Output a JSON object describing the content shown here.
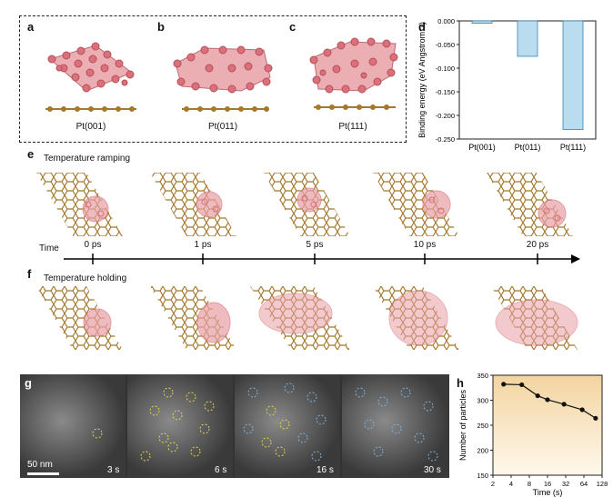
{
  "panels": {
    "a": {
      "letter": "a",
      "label": "Pt(001)"
    },
    "b": {
      "letter": "b",
      "label": "Pt(011)"
    },
    "c": {
      "letter": "c",
      "label": "Pt(111)"
    },
    "d": {
      "letter": "d"
    },
    "e": {
      "letter": "e",
      "title": "Temperature ramping"
    },
    "f": {
      "letter": "f",
      "title": "Temperature holding"
    },
    "g": {
      "letter": "g",
      "scale_bar": "50 nm",
      "frames": [
        "3 s",
        "6 s",
        "16 s",
        "30 s"
      ]
    },
    "h": {
      "letter": "h"
    }
  },
  "timeline": {
    "label": "Time",
    "ticks": [
      "0 ps",
      "1 ps",
      "5 ps",
      "10 ps",
      "20 ps"
    ]
  },
  "colors": {
    "pt": "#d9707a",
    "graphene": "#a5782e",
    "bar_fill": "#6ab0d6",
    "plot_bg": "#f6dcae"
  },
  "chart_data": [
    {
      "type": "bar",
      "categories": [
        "Pt(001)",
        "Pt(011)",
        "Pt(111)"
      ],
      "values": [
        -0.005,
        -0.075,
        -0.23
      ],
      "title": "",
      "xlabel": "",
      "ylabel": "Binding energy (eV Angstrom⁻²)",
      "ylim": [
        -0.25,
        0.0
      ],
      "yticks": [
        0.0,
        -0.05,
        -0.1,
        -0.15,
        -0.2,
        -0.25
      ],
      "ytick_labels": [
        "0.000",
        "-0.050",
        "-0.100",
        "-0.150",
        "-0.200",
        "-0.250"
      ]
    },
    {
      "type": "line",
      "x": [
        3,
        6,
        11,
        16,
        30,
        60,
        100
      ],
      "values": [
        332,
        331,
        309,
        301,
        292,
        281,
        264
      ],
      "title": "",
      "xlabel": "Time (s)",
      "ylabel": "Number of particles",
      "xscale": "log2",
      "xlim": [
        2,
        128
      ],
      "ylim": [
        150,
        350
      ],
      "xticks": [
        2,
        4,
        8,
        16,
        32,
        64,
        128
      ],
      "xtick_labels": [
        "2",
        "4",
        "8",
        "16",
        "32",
        "64",
        "128"
      ],
      "yticks": [
        150,
        200,
        250,
        300,
        350
      ],
      "ytick_labels": [
        "150",
        "200",
        "250",
        "300",
        "350"
      ]
    }
  ]
}
